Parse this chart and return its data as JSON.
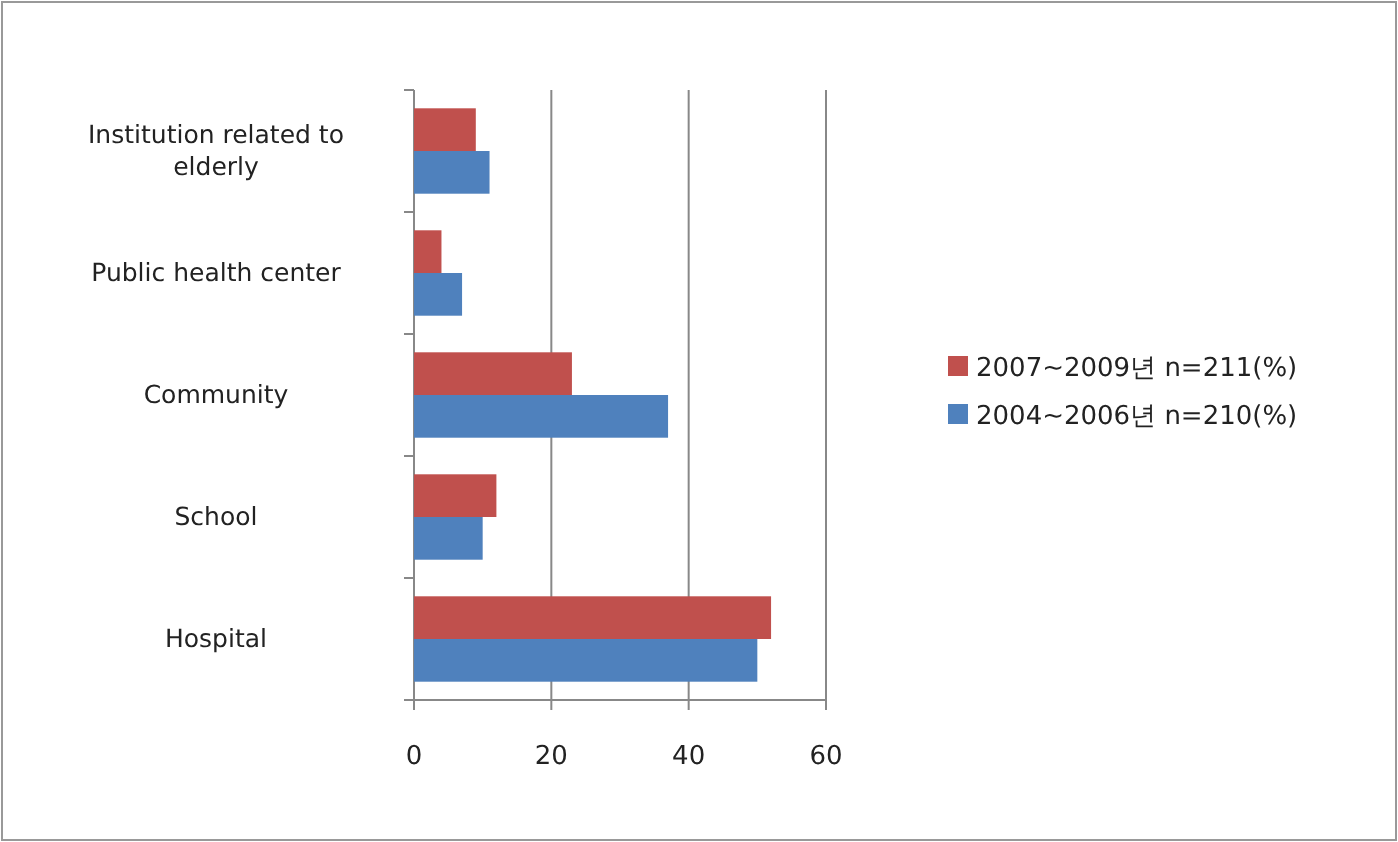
{
  "chart_data": {
    "type": "bar",
    "orientation": "horizontal",
    "categories": [
      "Institution related to elderly",
      "Public health center",
      "Community",
      "School",
      "Hospital"
    ],
    "series": [
      {
        "name": "2007~2009년 n=211(%)",
        "color": "#c0504d",
        "values": [
          9,
          4,
          23,
          12,
          52
        ]
      },
      {
        "name": "2004~2006년 n=210(%)",
        "color": "#4f81bd",
        "values": [
          11,
          7,
          37,
          10,
          50
        ]
      }
    ],
    "xlim": [
      0,
      60
    ],
    "xticks": [
      0,
      20,
      40,
      60
    ],
    "grid": "x",
    "legend": "right"
  }
}
